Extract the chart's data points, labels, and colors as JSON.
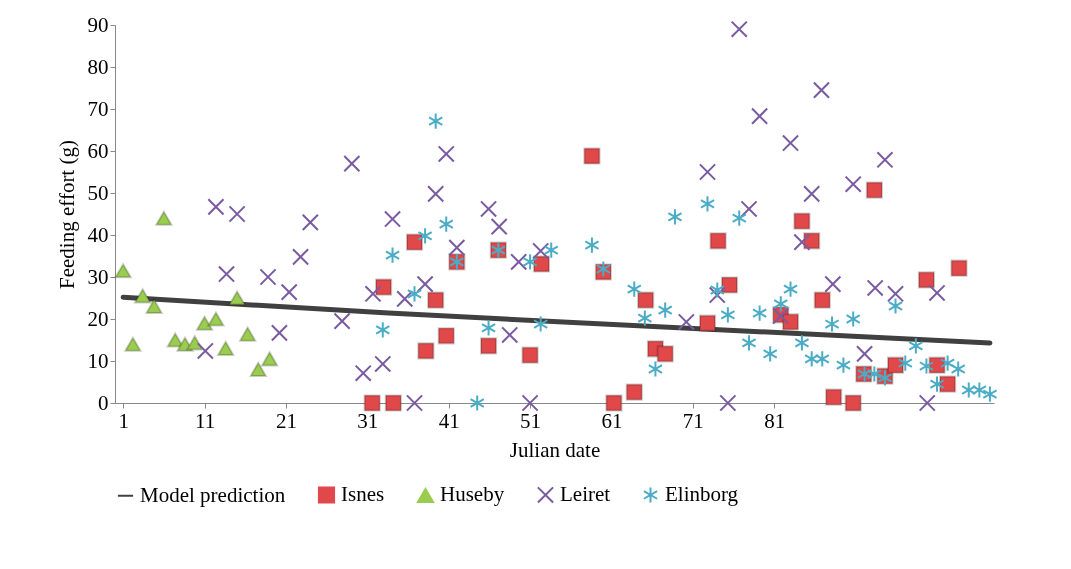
{
  "chart_data": {
    "type": "scatter",
    "xlabel": "Julian date",
    "ylabel": "Feeding effort (g)",
    "xlim": [
      0,
      108
    ],
    "xticks": [
      1,
      11,
      21,
      31,
      41,
      51,
      61,
      71,
      81
    ],
    "ylim": [
      0,
      90
    ],
    "yticks": [
      0,
      10,
      20,
      30,
      40,
      50,
      60,
      70,
      80,
      90
    ],
    "grid": false,
    "legend": "bottom",
    "series": [
      {
        "name": "Model prediction",
        "type": "line",
        "marker": "none",
        "color": "#404040",
        "x": [
          1,
          33.6,
          60,
          107.5
        ],
        "values": [
          25.2,
          21.4,
          18.8,
          14.3
        ]
      },
      {
        "name": "Isnes",
        "marker": "square",
        "color": "#e0484a",
        "x": [
          31.6,
          34.2,
          33,
          36.8,
          38.2,
          39.4,
          40.7,
          42,
          45.9,
          47.1,
          51,
          52.4,
          58.6,
          60,
          61.3,
          63.8,
          65.2,
          66.4,
          67.6,
          72.8,
          74.1,
          75.5,
          81.8,
          83,
          84.4,
          85.6,
          86.9,
          88.3,
          90.7,
          93.3,
          92,
          94.6,
          95.9,
          99.7,
          101,
          102.3,
          103.7
        ],
        "values": [
          0,
          0,
          27.6,
          38.3,
          12.4,
          24.5,
          16,
          33.6,
          13.6,
          36.4,
          11.4,
          33.1,
          58.8,
          31.2,
          0,
          2.6,
          24.5,
          12.9,
          11.7,
          19,
          38.6,
          28.1,
          21,
          19.3,
          43.3,
          38.6,
          24.5,
          1.4,
          0,
          50.7,
          6.9,
          6.4,
          9,
          29.3,
          9,
          4.5,
          32.1
        ]
      },
      {
        "name": "Huseby",
        "marker": "triangle",
        "color": "#9acd4f",
        "x": [
          1,
          2.2,
          3.4,
          4.8,
          6,
          7.4,
          8.6,
          9.8,
          11,
          12.4,
          15,
          13.6,
          16.3,
          17.6,
          19
        ],
        "values": [
          31.5,
          14,
          25.5,
          23,
          44,
          15,
          14,
          14.3,
          19,
          20,
          25,
          13,
          16.4,
          8,
          10.5
        ]
      },
      {
        "name": "Leiret",
        "marker": "cross",
        "color": "#7a5aa0",
        "x": [
          12.4,
          15,
          13.7,
          11.1,
          18.8,
          20.2,
          21.4,
          22.8,
          24,
          27.9,
          29.1,
          30.5,
          31.7,
          32.9,
          34.1,
          35.6,
          36.8,
          38.1,
          39.4,
          40.7,
          42,
          45.9,
          47.2,
          48.5,
          49.6,
          51,
          52.3,
          70.2,
          72.8,
          74,
          75.3,
          76.7,
          77.9,
          79.2,
          81.8,
          83,
          84.4,
          85.6,
          86.8,
          88.2,
          90.7,
          92.1,
          93.4,
          94.6,
          95.9,
          99.8,
          101
        ],
        "values": [
          46.7,
          45,
          30.7,
          12.4,
          30,
          16.7,
          26.4,
          34.8,
          43,
          19.5,
          57,
          7.1,
          26,
          9.3,
          43.8,
          24.8,
          0,
          28.3,
          49.8,
          59.3,
          37,
          46.2,
          42,
          16.2,
          33.6,
          0,
          36.2,
          19.3,
          55,
          25.7,
          0,
          89,
          46.2,
          68.3,
          20.7,
          61.9,
          38.3,
          49.8,
          74.5,
          28.3,
          52.1,
          11.7,
          27.4,
          57.9,
          26,
          0,
          26.2
        ]
      },
      {
        "name": "Elinborg",
        "marker": "star",
        "color": "#4bacc6",
        "x": [
          32.9,
          34.1,
          36.8,
          38.1,
          39.4,
          40.7,
          42,
          44.5,
          45.9,
          47.1,
          51,
          52.3,
          53.6,
          58.6,
          60,
          63.8,
          65.1,
          66.4,
          67.6,
          68.8,
          72.8,
          74,
          75.3,
          76.7,
          77.9,
          79.2,
          80.5,
          81.8,
          83,
          84.4,
          85.6,
          86.9,
          88.1,
          89.5,
          90.7,
          92.1,
          93.3,
          94.6,
          95.9,
          97.1,
          98.4,
          99.7,
          101,
          102.3,
          103.6,
          104.9,
          106.2,
          107.5
        ],
        "values": [
          17.4,
          35.2,
          26,
          39.8,
          67.1,
          42.6,
          33.6,
          0,
          17.9,
          36.4,
          33.6,
          18.8,
          36.4,
          37.6,
          31.9,
          27.1,
          20.2,
          8.1,
          22.1,
          44.3,
          47.4,
          26.9,
          21,
          44,
          14.3,
          21.4,
          11.7,
          23.6,
          27.1,
          14.3,
          10.5,
          10.5,
          18.8,
          9,
          20,
          6.9,
          6.9,
          6,
          23.1,
          9.5,
          13.6,
          8.8,
          4.5,
          9.5,
          8.1,
          3.1,
          3.1,
          2.1
        ]
      }
    ]
  }
}
